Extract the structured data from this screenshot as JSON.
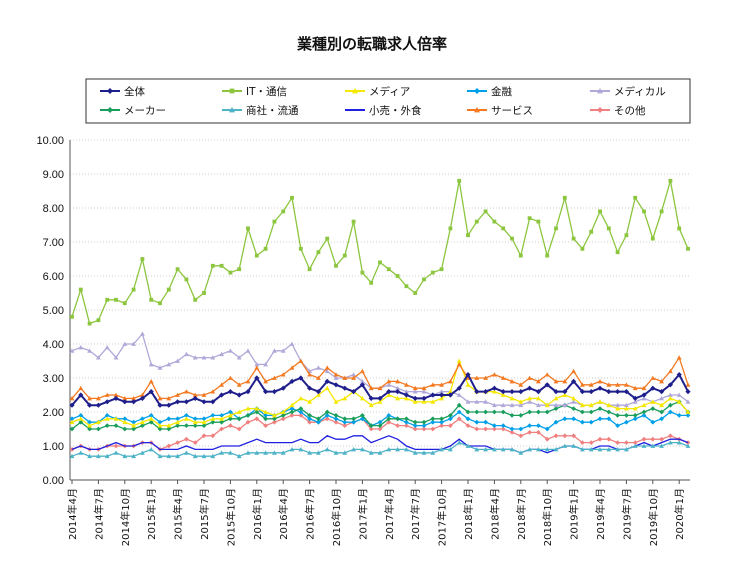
{
  "chart_data": {
    "type": "line",
    "title": "業種別の転職求人倍率",
    "xlabel": "",
    "ylabel": "",
    "ylim": [
      0,
      10
    ],
    "yticks": [
      "0.00",
      "1.00",
      "2.00",
      "3.00",
      "4.00",
      "5.00",
      "6.00",
      "7.00",
      "8.00",
      "9.00",
      "10.00"
    ],
    "grid": true,
    "legend_position": "top",
    "x_tick_labels": [
      "2014年4月",
      "2014年7月",
      "2014年10月",
      "2015年1月",
      "2015年4月",
      "2015年7月",
      "2015年10月",
      "2016年1月",
      "2016年4月",
      "2016年7月",
      "2016年10月",
      "2017年1月",
      "2017年4月",
      "2017年7月",
      "2017年10月",
      "2018年1月",
      "2018年4月",
      "2018年7月",
      "2018年10月",
      "2019年1月",
      "2019年4月",
      "2019年7月",
      "2019年10月",
      "2020年1月"
    ],
    "x": [
      "2014-04",
      "2014-05",
      "2014-06",
      "2014-07",
      "2014-08",
      "2014-09",
      "2014-10",
      "2014-11",
      "2014-12",
      "2015-01",
      "2015-02",
      "2015-03",
      "2015-04",
      "2015-05",
      "2015-06",
      "2015-07",
      "2015-08",
      "2015-09",
      "2015-10",
      "2015-11",
      "2015-12",
      "2016-01",
      "2016-02",
      "2016-03",
      "2016-04",
      "2016-05",
      "2016-06",
      "2016-07",
      "2016-08",
      "2016-09",
      "2016-10",
      "2016-11",
      "2016-12",
      "2017-01",
      "2017-02",
      "2017-03",
      "2017-04",
      "2017-05",
      "2017-06",
      "2017-07",
      "2017-08",
      "2017-09",
      "2017-10",
      "2017-11",
      "2017-12",
      "2018-01",
      "2018-02",
      "2018-03",
      "2018-04",
      "2018-05",
      "2018-06",
      "2018-07",
      "2018-08",
      "2018-09",
      "2018-10",
      "2018-11",
      "2018-12",
      "2019-01",
      "2019-02",
      "2019-03",
      "2019-04",
      "2019-05",
      "2019-06",
      "2019-07",
      "2019-08",
      "2019-09",
      "2019-10",
      "2019-11",
      "2019-12",
      "2020-01",
      "2020-02"
    ],
    "series": [
      {
        "name": "全体",
        "color": "#1f1f8c",
        "marker": "diamond",
        "values": [
          2.2,
          2.5,
          2.2,
          2.2,
          2.3,
          2.4,
          2.3,
          2.3,
          2.4,
          2.6,
          2.2,
          2.2,
          2.3,
          2.3,
          2.4,
          2.3,
          2.3,
          2.5,
          2.6,
          2.5,
          2.6,
          3.0,
          2.6,
          2.6,
          2.7,
          2.9,
          3.0,
          2.7,
          2.6,
          2.9,
          2.8,
          2.7,
          2.6,
          2.8,
          2.4,
          2.4,
          2.6,
          2.6,
          2.5,
          2.4,
          2.4,
          2.5,
          2.5,
          2.5,
          2.7,
          3.1,
          2.6,
          2.6,
          2.7,
          2.6,
          2.6,
          2.6,
          2.7,
          2.6,
          2.8,
          2.6,
          2.6,
          2.9,
          2.6,
          2.6,
          2.7,
          2.6,
          2.6,
          2.6,
          2.4,
          2.5,
          2.7,
          2.6,
          2.8,
          3.1,
          2.6
        ]
      },
      {
        "name": "IT・通信",
        "color": "#8cc63f",
        "marker": "square",
        "values": [
          4.8,
          5.6,
          4.6,
          4.7,
          5.3,
          5.3,
          5.2,
          5.6,
          6.5,
          5.3,
          5.2,
          5.6,
          6.2,
          5.9,
          5.3,
          5.5,
          6.3,
          6.3,
          6.1,
          6.2,
          7.4,
          6.6,
          6.8,
          7.6,
          7.9,
          8.3,
          6.8,
          6.2,
          6.7,
          7.1,
          6.3,
          6.6,
          7.6,
          6.1,
          5.8,
          6.4,
          6.2,
          6.0,
          5.7,
          5.5,
          5.9,
          6.1,
          6.2,
          7.4,
          8.8,
          7.2,
          7.6,
          7.9,
          7.6,
          7.4,
          7.1,
          6.6,
          7.7,
          7.6,
          6.6,
          7.4,
          8.3,
          7.1,
          6.8,
          7.3,
          7.9,
          7.4,
          6.7,
          7.2,
          8.3,
          7.9,
          7.1,
          7.9,
          8.8,
          7.4,
          6.8
        ]
      },
      {
        "name": "メディア",
        "color": "#f5e800",
        "marker": "triangle",
        "values": [
          1.7,
          1.8,
          1.6,
          1.7,
          1.8,
          1.8,
          1.7,
          1.6,
          1.7,
          1.8,
          1.6,
          1.6,
          1.7,
          1.8,
          1.7,
          1.7,
          1.8,
          1.8,
          1.9,
          2.0,
          2.1,
          2.1,
          2.0,
          1.9,
          2.0,
          2.2,
          2.4,
          2.3,
          2.5,
          2.7,
          2.3,
          2.4,
          2.6,
          2.4,
          2.2,
          2.3,
          2.5,
          2.4,
          2.4,
          2.3,
          2.3,
          2.3,
          2.4,
          2.6,
          3.5,
          2.8,
          2.6,
          2.6,
          2.6,
          2.5,
          2.4,
          2.3,
          2.4,
          2.4,
          2.2,
          2.4,
          2.5,
          2.4,
          2.2,
          2.2,
          2.3,
          2.2,
          2.1,
          2.1,
          2.1,
          2.2,
          2.3,
          2.2,
          2.4,
          2.3,
          2.0
        ]
      },
      {
        "name": "金融",
        "color": "#00a0e9",
        "marker": "diamond",
        "values": [
          1.8,
          1.9,
          1.7,
          1.7,
          1.9,
          1.8,
          1.8,
          1.7,
          1.8,
          1.9,
          1.7,
          1.8,
          1.8,
          1.9,
          1.8,
          1.8,
          1.9,
          1.9,
          2.0,
          1.8,
          1.9,
          2.1,
          1.9,
          1.9,
          2.0,
          2.1,
          2.0,
          1.8,
          1.7,
          1.9,
          1.8,
          1.7,
          1.7,
          1.8,
          1.6,
          1.7,
          1.9,
          1.8,
          1.7,
          1.6,
          1.6,
          1.7,
          1.7,
          1.8,
          2.0,
          1.8,
          1.7,
          1.7,
          1.6,
          1.6,
          1.5,
          1.5,
          1.6,
          1.6,
          1.5,
          1.7,
          1.8,
          1.8,
          1.7,
          1.7,
          1.8,
          1.8,
          1.6,
          1.7,
          1.8,
          1.9,
          1.7,
          1.8,
          2.0,
          1.9,
          1.9
        ]
      },
      {
        "name": "メディカル",
        "color": "#b0a8d8",
        "marker": "triangle",
        "values": [
          3.8,
          3.9,
          3.8,
          3.6,
          3.9,
          3.6,
          4.0,
          4.0,
          4.3,
          3.4,
          3.3,
          3.4,
          3.5,
          3.7,
          3.6,
          3.6,
          3.6,
          3.7,
          3.8,
          3.6,
          3.8,
          3.4,
          3.4,
          3.8,
          3.8,
          4.0,
          3.5,
          3.2,
          3.3,
          3.2,
          3.0,
          3.0,
          3.1,
          2.9,
          2.7,
          2.7,
          2.8,
          2.7,
          2.6,
          2.6,
          2.6,
          2.5,
          2.6,
          2.6,
          2.5,
          2.3,
          2.3,
          2.3,
          2.2,
          2.2,
          2.2,
          2.2,
          2.3,
          2.2,
          2.2,
          2.2,
          2.2,
          2.3,
          2.2,
          2.2,
          2.3,
          2.2,
          2.2,
          2.2,
          2.3,
          2.4,
          2.3,
          2.4,
          2.5,
          2.5,
          2.3
        ]
      },
      {
        "name": "メーカー",
        "color": "#1a9e5c",
        "marker": "diamond",
        "values": [
          1.5,
          1.7,
          1.5,
          1.5,
          1.6,
          1.6,
          1.5,
          1.5,
          1.6,
          1.7,
          1.5,
          1.5,
          1.6,
          1.6,
          1.6,
          1.6,
          1.7,
          1.7,
          1.8,
          1.8,
          1.9,
          2.0,
          1.8,
          1.8,
          1.9,
          2.0,
          2.1,
          1.9,
          1.8,
          2.0,
          1.9,
          1.8,
          1.8,
          1.9,
          1.6,
          1.6,
          1.8,
          1.8,
          1.8,
          1.7,
          1.7,
          1.8,
          1.8,
          1.9,
          2.2,
          2.0,
          2.0,
          2.0,
          2.0,
          2.0,
          1.9,
          1.9,
          2.0,
          2.0,
          2.0,
          2.1,
          2.2,
          2.1,
          2.0,
          2.0,
          2.1,
          2.0,
          1.9,
          1.9,
          1.9,
          2.0,
          2.1,
          2.0,
          2.2,
          2.3,
          2.0
        ]
      },
      {
        "name": "商社・流通",
        "color": "#4fb3c7",
        "marker": "triangle",
        "values": [
          0.7,
          0.8,
          0.7,
          0.7,
          0.7,
          0.8,
          0.7,
          0.7,
          0.8,
          0.9,
          0.7,
          0.7,
          0.7,
          0.8,
          0.7,
          0.7,
          0.7,
          0.8,
          0.8,
          0.7,
          0.8,
          0.8,
          0.8,
          0.8,
          0.8,
          0.9,
          0.9,
          0.8,
          0.8,
          0.9,
          0.8,
          0.8,
          0.9,
          0.9,
          0.8,
          0.8,
          0.9,
          0.9,
          0.9,
          0.8,
          0.8,
          0.8,
          0.9,
          0.9,
          1.1,
          1.0,
          0.9,
          0.9,
          0.9,
          0.9,
          0.9,
          0.8,
          0.9,
          0.9,
          0.9,
          0.9,
          1.0,
          1.0,
          0.9,
          0.9,
          0.9,
          0.9,
          0.9,
          0.9,
          1.0,
          1.0,
          1.0,
          1.0,
          1.1,
          1.1,
          1.0
        ]
      },
      {
        "name": "小売・外食",
        "color": "#2020e0",
        "marker": "none",
        "values": [
          0.9,
          1.0,
          0.9,
          0.9,
          1.0,
          1.1,
          1.0,
          1.0,
          1.1,
          1.1,
          0.9,
          0.9,
          0.9,
          1.0,
          0.9,
          0.9,
          0.9,
          1.0,
          1.0,
          1.0,
          1.1,
          1.2,
          1.1,
          1.1,
          1.1,
          1.1,
          1.2,
          1.1,
          1.1,
          1.3,
          1.2,
          1.2,
          1.3,
          1.3,
          1.1,
          1.2,
          1.3,
          1.2,
          1.0,
          0.9,
          0.9,
          0.9,
          0.9,
          1.0,
          1.2,
          1.0,
          1.0,
          1.0,
          0.9,
          0.9,
          0.9,
          0.8,
          0.9,
          0.9,
          0.8,
          0.9,
          1.0,
          1.0,
          0.9,
          0.9,
          1.0,
          1.0,
          0.9,
          0.9,
          1.0,
          1.1,
          1.0,
          1.1,
          1.2,
          1.2,
          1.1
        ]
      },
      {
        "name": "サービス",
        "color": "#f47920",
        "marker": "triangle",
        "values": [
          2.4,
          2.7,
          2.4,
          2.4,
          2.5,
          2.5,
          2.4,
          2.4,
          2.5,
          2.9,
          2.4,
          2.4,
          2.5,
          2.6,
          2.5,
          2.5,
          2.6,
          2.8,
          3.0,
          2.8,
          2.9,
          3.3,
          2.9,
          3.0,
          3.1,
          3.3,
          3.5,
          3.1,
          3.0,
          3.3,
          3.1,
          3.0,
          3.0,
          3.2,
          2.7,
          2.7,
          2.9,
          2.9,
          2.8,
          2.7,
          2.7,
          2.8,
          2.8,
          2.9,
          3.4,
          3.0,
          3.0,
          3.0,
          3.1,
          3.0,
          2.9,
          2.8,
          3.0,
          2.9,
          3.1,
          2.9,
          2.9,
          3.2,
          2.8,
          2.8,
          2.9,
          2.8,
          2.8,
          2.8,
          2.7,
          2.7,
          3.0,
          2.9,
          3.2,
          3.6,
          2.8
        ]
      },
      {
        "name": "その他",
        "color": "#f08080",
        "marker": "diamond",
        "values": [
          0.9,
          1.0,
          0.9,
          0.9,
          1.0,
          1.0,
          1.0,
          1.0,
          1.1,
          1.1,
          0.9,
          1.0,
          1.1,
          1.2,
          1.1,
          1.3,
          1.3,
          1.5,
          1.6,
          1.5,
          1.7,
          1.8,
          1.6,
          1.7,
          1.8,
          1.9,
          1.9,
          1.7,
          1.7,
          1.8,
          1.7,
          1.6,
          1.7,
          1.8,
          1.5,
          1.5,
          1.7,
          1.6,
          1.6,
          1.5,
          1.5,
          1.5,
          1.6,
          1.6,
          1.8,
          1.6,
          1.5,
          1.5,
          1.5,
          1.5,
          1.4,
          1.3,
          1.4,
          1.4,
          1.2,
          1.3,
          1.3,
          1.3,
          1.1,
          1.1,
          1.2,
          1.2,
          1.1,
          1.1,
          1.1,
          1.2,
          1.2,
          1.2,
          1.3,
          1.2,
          1.1
        ]
      }
    ]
  }
}
